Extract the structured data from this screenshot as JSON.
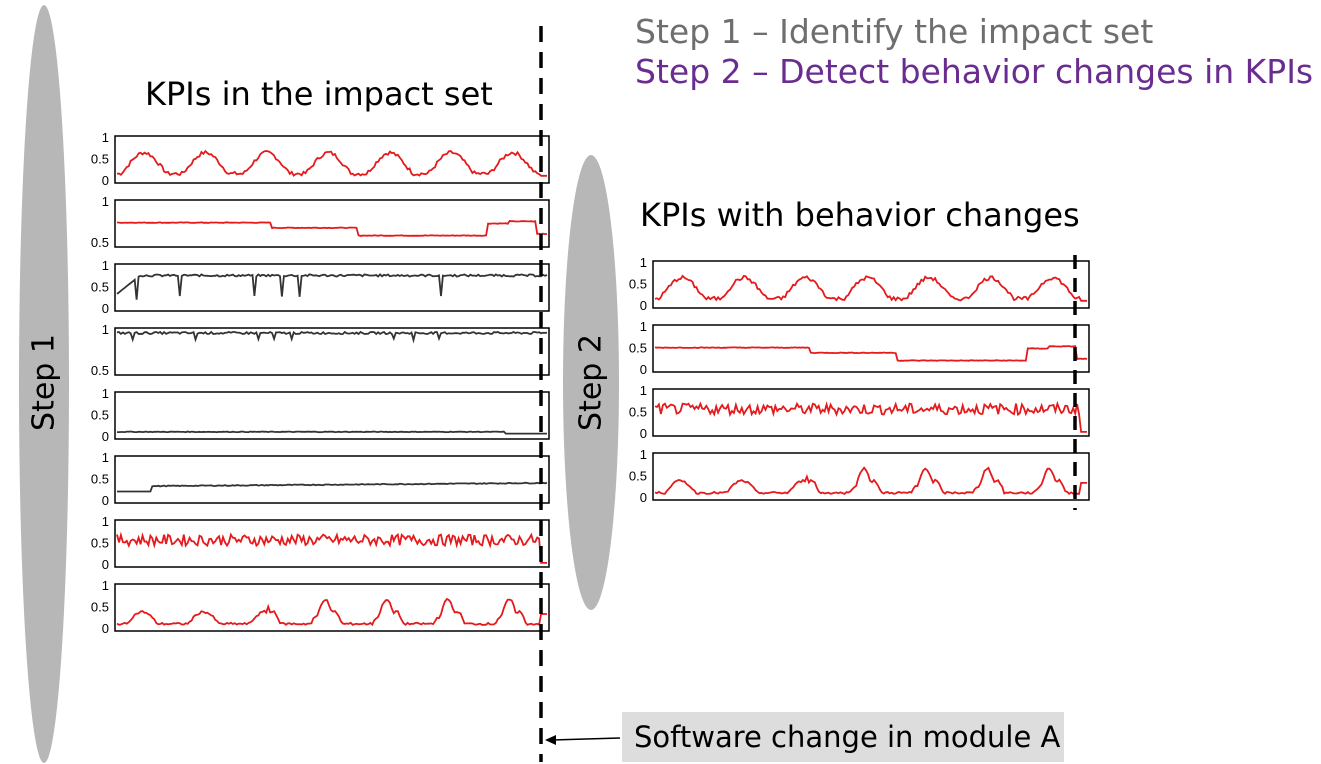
{
  "legend": {
    "step1": "Step 1 – Identify the impact set",
    "step2": "Step 2 – Detect behavior changes in KPIs",
    "step1_color": "#6e6e6e",
    "step2_color": "#6a2c91"
  },
  "left_panel": {
    "title": "KPIs in the impact set",
    "side_label": "Step 1",
    "series": [
      {
        "id": "kpi1",
        "color": "#e41a1c",
        "ticks": [
          "1",
          "0.5",
          "0"
        ],
        "pattern": "daily-cycle-noisy"
      },
      {
        "id": "kpi2",
        "color": "#e41a1c",
        "ticks": [
          "1",
          "0.5"
        ],
        "pattern": "step-levels"
      },
      {
        "id": "kpi3",
        "color": "#333333",
        "ticks": [
          "1",
          "0.5",
          "0"
        ],
        "pattern": "high-with-dips"
      },
      {
        "id": "kpi4",
        "color": "#333333",
        "ticks": [
          "1",
          "0.5"
        ],
        "pattern": "near-one-with-dips"
      },
      {
        "id": "kpi5",
        "color": "#333333",
        "ticks": [
          "1",
          "0.5",
          "0"
        ],
        "pattern": "low-flat"
      },
      {
        "id": "kpi6",
        "color": "#333333",
        "ticks": [
          "1",
          "0.5",
          "0"
        ],
        "pattern": "low-rising"
      },
      {
        "id": "kpi7",
        "color": "#e41a1c",
        "ticks": [
          "1",
          "0.5",
          "0"
        ],
        "pattern": "noisy-mid-drop"
      },
      {
        "id": "kpi8",
        "color": "#e41a1c",
        "ticks": [
          "1",
          "0.5",
          "0"
        ],
        "pattern": "double-peak-cycle"
      }
    ]
  },
  "right_panel": {
    "title": "KPIs with behavior changes",
    "side_label": "Step 2",
    "series": [
      {
        "id": "kpi1",
        "color": "#e41a1c",
        "ticks": [
          "1",
          "0.5",
          "0"
        ],
        "pattern": "daily-cycle-noisy"
      },
      {
        "id": "kpi2",
        "color": "#e41a1c",
        "ticks": [
          "1",
          "0.5",
          "0"
        ],
        "pattern": "step-levels"
      },
      {
        "id": "kpi7",
        "color": "#e41a1c",
        "ticks": [
          "1",
          "0.5",
          "0"
        ],
        "pattern": "noisy-mid-drop"
      },
      {
        "id": "kpi8",
        "color": "#e41a1c",
        "ticks": [
          "1",
          "0.5",
          "0"
        ],
        "pattern": "double-peak-cycle"
      }
    ]
  },
  "change_marker": {
    "label": "Software change in module A"
  }
}
